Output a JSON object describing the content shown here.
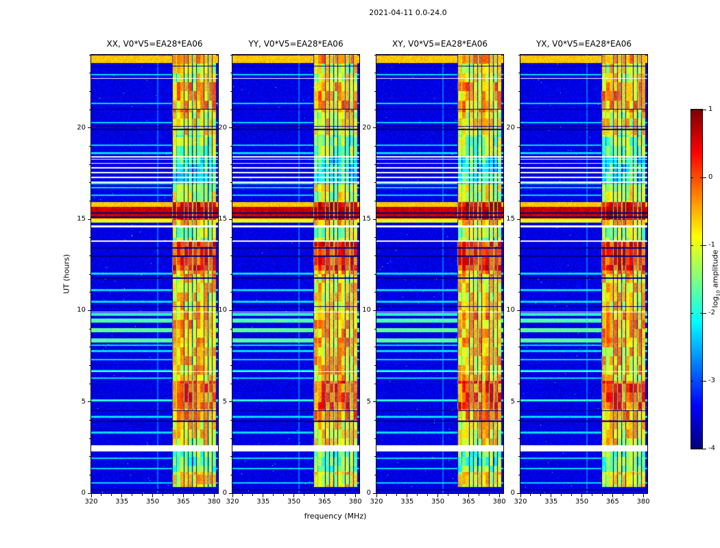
{
  "figure": {
    "title": "2021-04-11 0.0-24.0"
  },
  "axes": {
    "xlabel": "frequency (MHz)",
    "ylabel": "UT (hours)",
    "xticks": [
      320,
      335,
      350,
      365,
      380
    ],
    "yticks": [
      0,
      5,
      10,
      15,
      20
    ],
    "x_minor_step": 5,
    "y_minor_step": 1
  },
  "panels": [
    {
      "id": "xx",
      "title": "XX, V0*V5=EA28*EA06"
    },
    {
      "id": "yy",
      "title": "YY, V0*V5=EA28*EA06"
    },
    {
      "id": "xy",
      "title": "XY, V0*V5=EA28*EA06"
    },
    {
      "id": "yx",
      "title": "YX, V0*V5=EA28*EA06"
    }
  ],
  "colorbar": {
    "label_prefix": "log",
    "label_sub": "10",
    "label_suffix": " amplitude",
    "ticks": [
      1,
      0,
      -1,
      -2,
      -3,
      -4
    ],
    "range": [
      -4,
      1
    ],
    "colormap": "jet"
  },
  "chart_data": {
    "type": "heatmap",
    "title": "2021-04-11 0.0-24.0",
    "colormap": "jet",
    "value_range": [
      -4,
      1
    ],
    "x_range_mhz": [
      320,
      382
    ],
    "t_range_hours": [
      0,
      24
    ],
    "background_level": -3.5,
    "noise_sigma": 0.3,
    "speckle_probability": 0.0008,
    "rfi_band_mhz": [
      359.5,
      381.0
    ],
    "rfi_channel_width_mhz": 1.95,
    "narrow_line_mhz": 352.6,
    "rfi_activity": [
      {
        "t": [
          0.35,
          1.15
        ],
        "level": -0.9
      },
      {
        "t": [
          1.15,
          2.3
        ],
        "level": -1.6
      },
      {
        "t": [
          2.62,
          3.9
        ],
        "level": -0.9
      },
      {
        "t": [
          3.9,
          4.6
        ],
        "level": -0.45
      },
      {
        "t": [
          4.6,
          6.15
        ],
        "level": -0.05
      },
      {
        "t": [
          6.15,
          8.2
        ],
        "level": -0.75
      },
      {
        "t": [
          8.2,
          9.9
        ],
        "level": -0.55
      },
      {
        "t": [
          9.9,
          11.9
        ],
        "level": -0.85
      },
      {
        "t": [
          11.9,
          12.2
        ],
        "level": -0.5
      },
      {
        "t": [
          12.2,
          13.75
        ],
        "level": 0.15
      },
      {
        "t": [
          13.85,
          14.55
        ],
        "level": -1.3
      },
      {
        "t": [
          14.65,
          14.98
        ],
        "level": -0.7
      },
      {
        "t": [
          14.98,
          15.95
        ],
        "level": 0.4
      },
      {
        "t": [
          15.95,
          16.9
        ],
        "level": -1.1
      },
      {
        "t": [
          17.0,
          18.45
        ],
        "level": -2.0
      },
      {
        "t": [
          18.45,
          19.6
        ],
        "level": -1.4
      },
      {
        "t": [
          19.6,
          20.85
        ],
        "level": -0.95
      },
      {
        "t": [
          20.85,
          22.5
        ],
        "level": -0.5
      },
      {
        "t": [
          22.5,
          23.5
        ],
        "level": -0.95
      },
      {
        "t": [
          23.5,
          24.0
        ],
        "level": -0.6
      }
    ],
    "broadband_bands": [
      {
        "t": [
          15.02,
          15.68
        ],
        "level": 0.65
      },
      {
        "t": [
          14.82,
          15.02
        ],
        "level": -0.9
      },
      {
        "t": [
          15.68,
          15.93
        ],
        "level": -0.6
      },
      {
        "t": [
          23.55,
          23.97
        ],
        "level": -0.6
      },
      {
        "t": [
          8.25,
          8.48
        ],
        "level": -1.7
      },
      {
        "t": [
          8.82,
          9.02
        ],
        "level": -1.65
      },
      {
        "t": [
          9.35,
          9.58
        ],
        "level": -1.75
      },
      {
        "t": [
          9.72,
          9.86
        ],
        "level": -1.9
      },
      {
        "t": [
          5.02,
          5.14
        ],
        "level": -1.9
      },
      {
        "t": [
          16.9,
          17.0
        ],
        "level": -2.1
      }
    ],
    "cyan_lines_hours": [
      0.55,
      1.35,
      1.92,
      3.32,
      4.18,
      6.3,
      6.72,
      7.32,
      7.78,
      8.1,
      10.48,
      11.12,
      12.02,
      16.32,
      16.72,
      18.62,
      19.05,
      20.3,
      21.35,
      22.92
    ],
    "dark_lines_hours": [
      0.18,
      3.95,
      4.52,
      10.22,
      11.78,
      12.98,
      13.42,
      15.12,
      15.34,
      19.92,
      20.08,
      21.02,
      23.38
    ],
    "white_gaps_hours": [
      [
        2.3,
        2.62
      ],
      [
        6.62,
        6.67
      ],
      [
        9.9,
        9.94
      ],
      [
        13.75,
        13.85
      ],
      [
        14.55,
        14.65
      ],
      [
        17.0,
        17.07
      ],
      [
        17.25,
        17.32
      ],
      [
        17.52,
        17.59
      ],
      [
        17.78,
        17.85
      ],
      [
        18.02,
        18.08
      ],
      [
        18.25,
        18.31
      ],
      [
        18.39,
        18.45
      ],
      [
        22.68,
        22.74
      ]
    ]
  }
}
